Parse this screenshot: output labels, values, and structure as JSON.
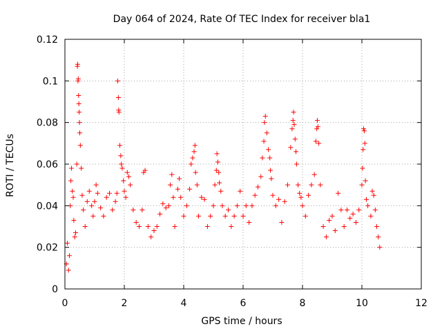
{
  "chart_data": {
    "type": "scatter",
    "title": "Day 064 of 2024, Rate Of TEC Index for receiver bla1",
    "xlabel": "GPS time / hours",
    "ylabel": "ROTI / TECUs",
    "xlim": [
      0,
      12
    ],
    "ylim": [
      0,
      0.12
    ],
    "xticks": [
      0,
      2,
      4,
      6,
      8,
      10,
      12
    ],
    "xtick_labels": [
      "0",
      "2",
      "4",
      "6",
      "8",
      "10",
      "12"
    ],
    "yticks": [
      0,
      0.02,
      0.04,
      0.06,
      0.08,
      0.1,
      0.12
    ],
    "ytick_labels": [
      "0",
      "0.02",
      "0.04",
      "0.06",
      "0.08",
      "0.1",
      "0.12"
    ],
    "grid": true,
    "marker": "+",
    "marker_color": "#ff0000",
    "series": [
      {
        "name": "ROTI",
        "points": [
          [
            0.05,
            0.012
          ],
          [
            0.08,
            0.022
          ],
          [
            0.12,
            0.009
          ],
          [
            0.15,
            0.016
          ],
          [
            0.18,
            0.04
          ],
          [
            0.2,
            0.052
          ],
          [
            0.22,
            0.058
          ],
          [
            0.25,
            0.047
          ],
          [
            0.28,
            0.044
          ],
          [
            0.3,
            0.033
          ],
          [
            0.33,
            0.025
          ],
          [
            0.36,
            0.027
          ],
          [
            0.4,
            0.06
          ],
          [
            0.42,
            0.107
          ],
          [
            0.43,
            0.108
          ],
          [
            0.44,
            0.1
          ],
          [
            0.45,
            0.101
          ],
          [
            0.46,
            0.093
          ],
          [
            0.47,
            0.089
          ],
          [
            0.48,
            0.085
          ],
          [
            0.49,
            0.08
          ],
          [
            0.5,
            0.075
          ],
          [
            0.52,
            0.069
          ],
          [
            0.55,
            0.058
          ],
          [
            0.58,
            0.045
          ],
          [
            0.62,
            0.038
          ],
          [
            0.68,
            0.03
          ],
          [
            0.75,
            0.042
          ],
          [
            0.82,
            0.047
          ],
          [
            0.9,
            0.04
          ],
          [
            0.95,
            0.035
          ],
          [
            1.0,
            0.042
          ],
          [
            1.05,
            0.05
          ],
          [
            1.1,
            0.046
          ],
          [
            1.2,
            0.039
          ],
          [
            1.3,
            0.035
          ],
          [
            1.4,
            0.044
          ],
          [
            1.5,
            0.046
          ],
          [
            1.6,
            0.038
          ],
          [
            1.7,
            0.042
          ],
          [
            1.75,
            0.046
          ],
          [
            1.78,
            0.1
          ],
          [
            1.8,
            0.092
          ],
          [
            1.81,
            0.086
          ],
          [
            1.82,
            0.085
          ],
          [
            1.85,
            0.069
          ],
          [
            1.88,
            0.064
          ],
          [
            1.9,
            0.06
          ],
          [
            1.93,
            0.058
          ],
          [
            1.97,
            0.052
          ],
          [
            2.0,
            0.047
          ],
          [
            2.05,
            0.044
          ],
          [
            2.1,
            0.056
          ],
          [
            2.15,
            0.054
          ],
          [
            2.2,
            0.05
          ],
          [
            2.3,
            0.038
          ],
          [
            2.4,
            0.032
          ],
          [
            2.5,
            0.03
          ],
          [
            2.6,
            0.038
          ],
          [
            2.65,
            0.056
          ],
          [
            2.7,
            0.057
          ],
          [
            2.8,
            0.03
          ],
          [
            2.9,
            0.025
          ],
          [
            3.0,
            0.028
          ],
          [
            3.1,
            0.03
          ],
          [
            3.2,
            0.036
          ],
          [
            3.3,
            0.041
          ],
          [
            3.4,
            0.039
          ],
          [
            3.5,
            0.04
          ],
          [
            3.55,
            0.05
          ],
          [
            3.6,
            0.055
          ],
          [
            3.65,
            0.044
          ],
          [
            3.7,
            0.03
          ],
          [
            3.8,
            0.048
          ],
          [
            3.85,
            0.053
          ],
          [
            3.9,
            0.044
          ],
          [
            4.0,
            0.035
          ],
          [
            4.1,
            0.04
          ],
          [
            4.2,
            0.048
          ],
          [
            4.25,
            0.06
          ],
          [
            4.3,
            0.063
          ],
          [
            4.35,
            0.066
          ],
          [
            4.38,
            0.069
          ],
          [
            4.4,
            0.056
          ],
          [
            4.45,
            0.05
          ],
          [
            4.5,
            0.035
          ],
          [
            4.6,
            0.044
          ],
          [
            4.7,
            0.043
          ],
          [
            4.8,
            0.03
          ],
          [
            4.9,
            0.035
          ],
          [
            5.0,
            0.04
          ],
          [
            5.05,
            0.05
          ],
          [
            5.1,
            0.057
          ],
          [
            5.12,
            0.065
          ],
          [
            5.15,
            0.061
          ],
          [
            5.18,
            0.056
          ],
          [
            5.2,
            0.051
          ],
          [
            5.25,
            0.047
          ],
          [
            5.3,
            0.04
          ],
          [
            5.4,
            0.035
          ],
          [
            5.5,
            0.038
          ],
          [
            5.6,
            0.03
          ],
          [
            5.7,
            0.035
          ],
          [
            5.8,
            0.04
          ],
          [
            5.9,
            0.047
          ],
          [
            6.0,
            0.035
          ],
          [
            6.1,
            0.04
          ],
          [
            6.2,
            0.032
          ],
          [
            6.3,
            0.04
          ],
          [
            6.4,
            0.045
          ],
          [
            6.5,
            0.049
          ],
          [
            6.6,
            0.054
          ],
          [
            6.65,
            0.063
          ],
          [
            6.7,
            0.071
          ],
          [
            6.72,
            0.08
          ],
          [
            6.75,
            0.083
          ],
          [
            6.8,
            0.075
          ],
          [
            6.85,
            0.067
          ],
          [
            6.9,
            0.063
          ],
          [
            6.92,
            0.057
          ],
          [
            6.95,
            0.053
          ],
          [
            7.0,
            0.045
          ],
          [
            7.1,
            0.04
          ],
          [
            7.2,
            0.043
          ],
          [
            7.3,
            0.032
          ],
          [
            7.4,
            0.042
          ],
          [
            7.5,
            0.05
          ],
          [
            7.6,
            0.068
          ],
          [
            7.65,
            0.077
          ],
          [
            7.68,
            0.081
          ],
          [
            7.7,
            0.085
          ],
          [
            7.72,
            0.079
          ],
          [
            7.75,
            0.072
          ],
          [
            7.78,
            0.066
          ],
          [
            7.8,
            0.06
          ],
          [
            7.85,
            0.05
          ],
          [
            7.9,
            0.046
          ],
          [
            7.95,
            0.044
          ],
          [
            8.0,
            0.04
          ],
          [
            8.1,
            0.035
          ],
          [
            8.2,
            0.045
          ],
          [
            8.3,
            0.05
          ],
          [
            8.4,
            0.055
          ],
          [
            8.45,
            0.071
          ],
          [
            8.48,
            0.077
          ],
          [
            8.5,
            0.081
          ],
          [
            8.52,
            0.078
          ],
          [
            8.55,
            0.07
          ],
          [
            8.6,
            0.05
          ],
          [
            8.7,
            0.03
          ],
          [
            8.8,
            0.025
          ],
          [
            8.9,
            0.033
          ],
          [
            9.0,
            0.035
          ],
          [
            9.1,
            0.028
          ],
          [
            9.2,
            0.046
          ],
          [
            9.3,
            0.038
          ],
          [
            9.4,
            0.03
          ],
          [
            9.5,
            0.038
          ],
          [
            9.6,
            0.034
          ],
          [
            9.7,
            0.036
          ],
          [
            9.8,
            0.032
          ],
          [
            9.9,
            0.038
          ],
          [
            10.0,
            0.05
          ],
          [
            10.02,
            0.058
          ],
          [
            10.04,
            0.067
          ],
          [
            10.06,
            0.077
          ],
          [
            10.08,
            0.076
          ],
          [
            10.1,
            0.07
          ],
          [
            10.12,
            0.052
          ],
          [
            10.15,
            0.043
          ],
          [
            10.2,
            0.04
          ],
          [
            10.3,
            0.035
          ],
          [
            10.35,
            0.047
          ],
          [
            10.4,
            0.045
          ],
          [
            10.45,
            0.038
          ],
          [
            10.5,
            0.03
          ],
          [
            10.55,
            0.025
          ],
          [
            10.6,
            0.02
          ]
        ]
      }
    ]
  }
}
